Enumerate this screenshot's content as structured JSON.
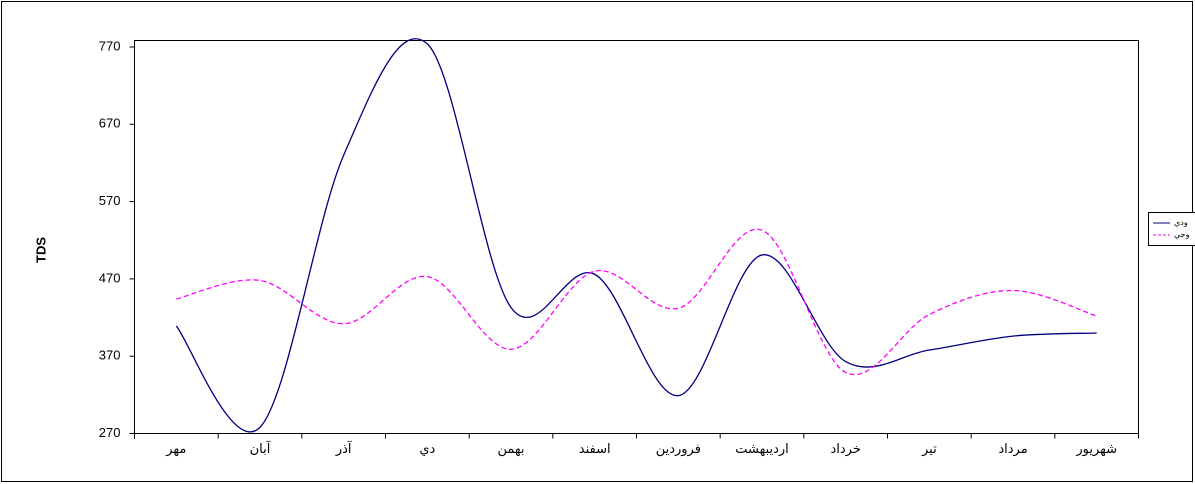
{
  "chart_data": {
    "type": "line",
    "y_label": "TDS",
    "categories": [
      "مهر",
      "آبان",
      "آذر",
      "دي",
      "بهمن",
      "اسفند",
      "فروردين",
      "ارديبهشت",
      "خرداد",
      "تير",
      "مرداد",
      "شهريور"
    ],
    "series": [
      {
        "name": "ودي",
        "color": "#000080",
        "dash": false,
        "values": [
          409,
          278,
          630,
          774,
          433,
          476,
          319,
          501,
          363,
          378,
          396,
          400
        ]
      },
      {
        "name": "وجي",
        "color": "#ff00ff",
        "dash": true,
        "values": [
          444,
          468,
          412,
          473,
          379,
          480,
          432,
          533,
          349,
          424,
          455,
          422
        ]
      }
    ],
    "ylim": [
      270,
      770
    ],
    "yticks": [
      270,
      370,
      470,
      570,
      670,
      770
    ],
    "smooth": true,
    "grid": false,
    "legend": "right"
  }
}
